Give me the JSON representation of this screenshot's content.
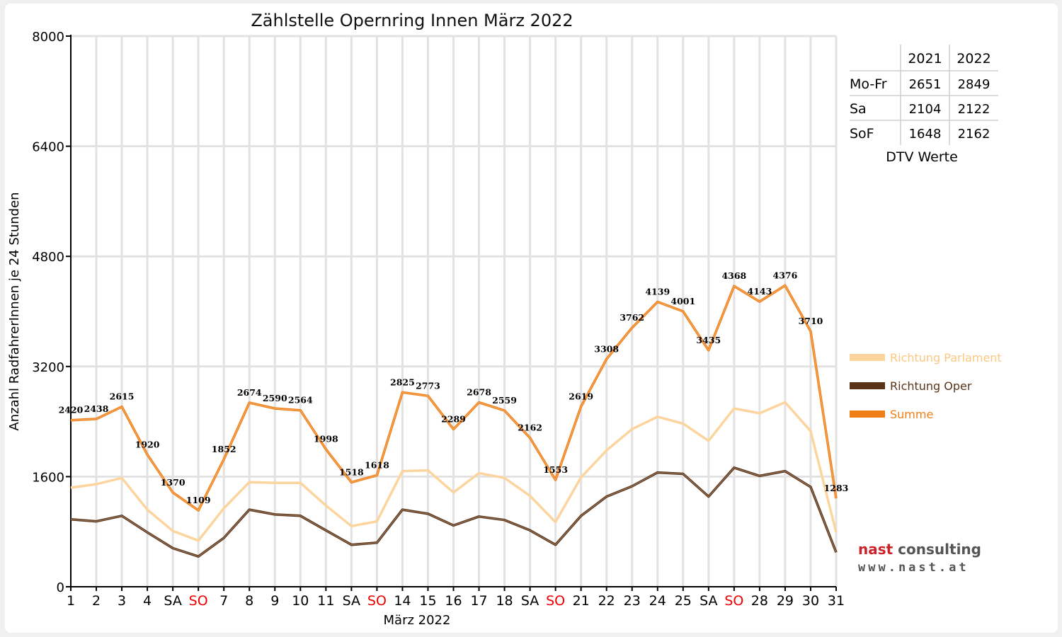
{
  "chart_data": {
    "type": "line",
    "title": "Zählstelle Opernring Innen März 2022",
    "xlabel": "März 2022",
    "ylabel": "Anzahl RadfahrerInnen je 24 Stunden",
    "ylim": [
      0,
      8000
    ],
    "yticks": [
      0,
      1600,
      3200,
      4800,
      6400,
      8000
    ],
    "grid": true,
    "categories": [
      "1",
      "2",
      "3",
      "4",
      "SA",
      "SO",
      "7",
      "8",
      "9",
      "10",
      "11",
      "SA",
      "SO",
      "14",
      "15",
      "16",
      "17",
      "18",
      "SA",
      "SO",
      "21",
      "22",
      "23",
      "24",
      "25",
      "SA",
      "SO",
      "28",
      "29",
      "30",
      "31"
    ],
    "highlight_color": "#ee0000",
    "highlight_categories": [
      "SO"
    ],
    "legend_placement": "right",
    "series": [
      {
        "name": "Richtung Parlament",
        "color": "#fcd59e",
        "values": [
          1440,
          1490,
          1580,
          1120,
          810,
          670,
          1140,
          1520,
          1510,
          1510,
          1180,
          880,
          950,
          1680,
          1690,
          1370,
          1650,
          1580,
          1320,
          940,
          1590,
          1980,
          2290,
          2470,
          2370,
          2120,
          2590,
          2520,
          2680,
          2260,
          790
        ]
      },
      {
        "name": "Richtung Oper",
        "color": "#5a3418",
        "values": [
          980,
          950,
          1030,
          790,
          560,
          440,
          710,
          1120,
          1050,
          1030,
          820,
          610,
          640,
          1120,
          1060,
          890,
          1020,
          970,
          820,
          610,
          1030,
          1310,
          1460,
          1660,
          1640,
          1310,
          1730,
          1610,
          1680,
          1450,
          500
        ]
      },
      {
        "name": "Summe",
        "color": "#f07e17",
        "values": [
          2420,
          2438,
          2615,
          1920,
          1370,
          1109,
          1852,
          2674,
          2590,
          2564,
          1998,
          1518,
          1618,
          2825,
          2773,
          2289,
          2678,
          2559,
          2162,
          1553,
          2619,
          3308,
          3762,
          4139,
          4001,
          3435,
          4368,
          4143,
          4376,
          3710,
          1283
        ],
        "labels": [
          "2420",
          "2438",
          "2615",
          "1920",
          "1370",
          "1109",
          "1852",
          "2674",
          "2590",
          "2564",
          "1998",
          "1518",
          "1618",
          "2825",
          "2773",
          "2289",
          "2678",
          "2559",
          "2162",
          "1553",
          "2619",
          "3308",
          "3762",
          "4139",
          "4001",
          "3435",
          "4368",
          "4143",
          "4376",
          "3710",
          "1283"
        ]
      }
    ]
  },
  "dtv_table": {
    "caption": "DTV Werte",
    "columns": [
      "2021",
      "2022"
    ],
    "rows": [
      {
        "label": "Mo-Fr",
        "values": [
          "2651",
          "2849"
        ]
      },
      {
        "label": "Sa",
        "values": [
          "2104",
          "2122"
        ]
      },
      {
        "label": "SoF",
        "values": [
          "1648",
          "2162"
        ]
      }
    ]
  },
  "logo": {
    "name_part1": "nast",
    "name_part2": "consulting",
    "url": "www.nast.at"
  }
}
